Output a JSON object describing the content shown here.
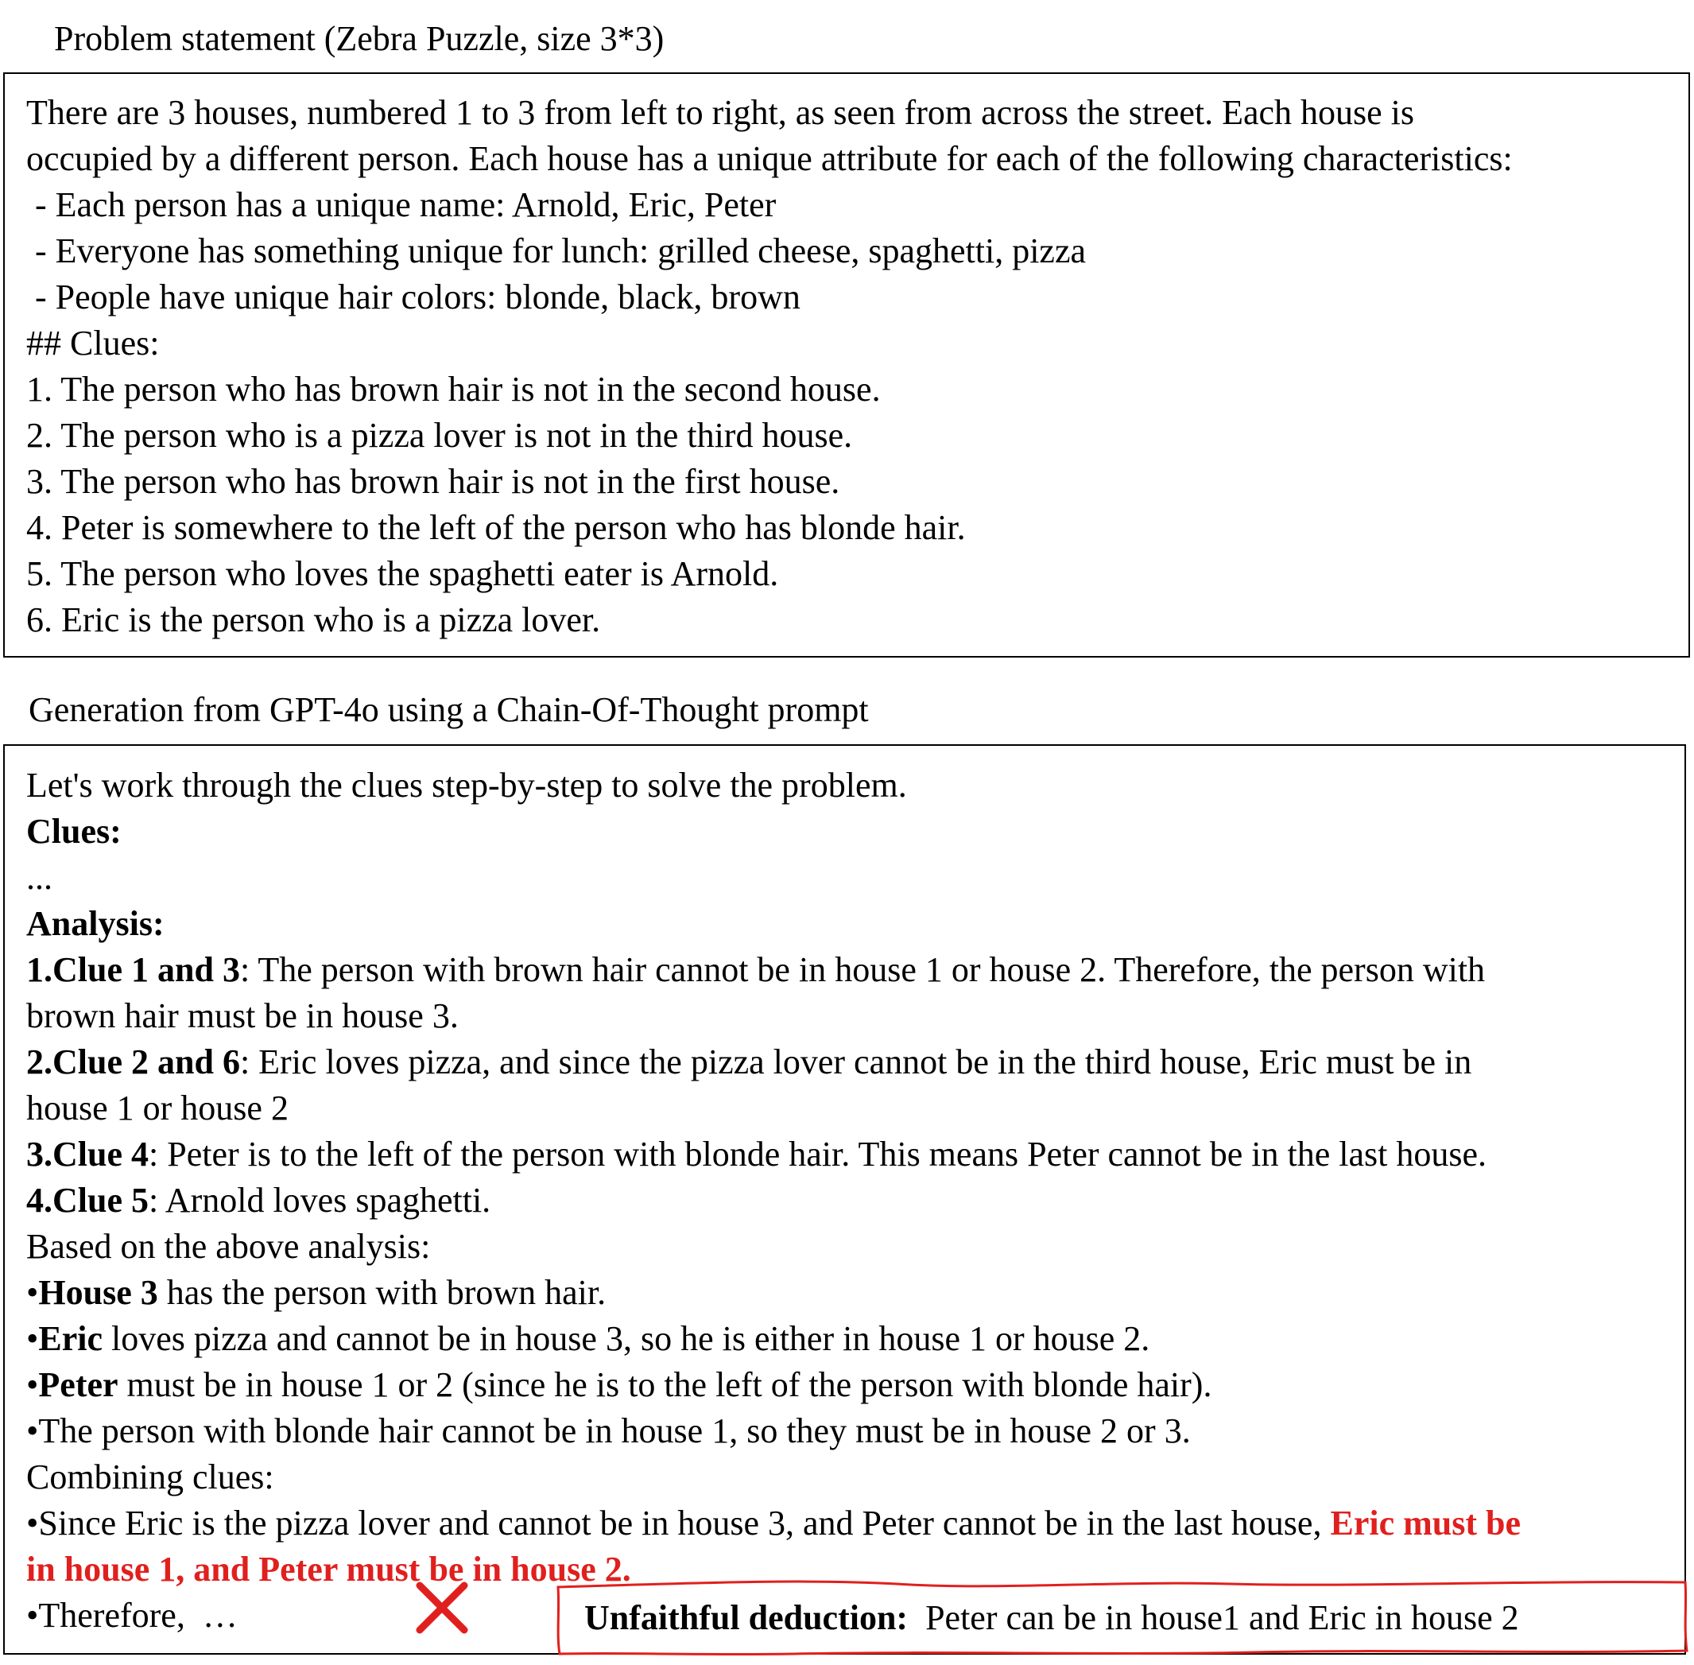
{
  "problem": {
    "title": "Problem statement (Zebra Puzzle, size 3*3)",
    "lines": [
      "There are 3 houses, numbered 1 to 3 from left to right, as seen from across the street. Each house is",
      "occupied by a different person. Each house has a unique attribute for each of the following characteristics:",
      " - Each person has a unique name: Arnold, Eric, Peter",
      " - Everyone has something unique for lunch: grilled cheese, spaghetti, pizza",
      " - People have unique hair colors: blonde, black, brown",
      "## Clues:",
      "1. The person who has brown hair is not in the second house.",
      "2. The person who is a pizza lover is not in the third house.",
      "3. The person who has brown hair is not in the first house.",
      "4. Peter is somewhere to the left of the person who has blonde hair.",
      "5. The person who loves the spaghetti eater is Arnold.",
      "6. Eric is the person who is a pizza lover."
    ]
  },
  "generation": {
    "title": "Generation from GPT-4o using a Chain-Of-Thought prompt",
    "intro": "Let's work through the clues step-by-step to solve the problem.",
    "clues_heading": "Clues:",
    "ellipsis": "...",
    "analysis_heading": "Analysis:",
    "a1_bold": "1.Clue 1 and 3",
    "a1_text": ": The person with brown hair cannot be in house 1 or house 2. Therefore, the person with",
    "a1_cont": "brown hair must be in house 3.",
    "a2_bold": "2.Clue 2 and 6",
    "a2_text": ": Eric loves pizza, and since the pizza lover cannot be in the third house, Eric must be in",
    "a2_cont": "house 1 or house 2",
    "a3_bold": "3.Clue 4",
    "a3_text": ": Peter is to the left of the person with blonde hair. This means Peter cannot be in the last house.",
    "a4_bold": "4.Clue 5",
    "a4_text": ": Arnold loves spaghetti.",
    "based": "Based on the above analysis:",
    "b1_bullet": "•",
    "b1_bold": "House 3",
    "b1_text": " has the person with brown hair.",
    "b2_bullet": "•",
    "b2_bold": "Eric",
    "b2_text": " loves pizza and cannot be in house 3, so he is either in house 1 or house 2.",
    "b3_bullet": "•",
    "b3_bold": "Peter",
    "b3_text": " must be in house 1 or 2 (since he is to the left of the person with blonde hair).",
    "b4": "•The person with blonde hair cannot be in house 1, so they must be in house 2 or 3.",
    "combining": "Combining clues:",
    "c1_text": "•Since Eric is the pizza lover and cannot be in house 3, and Peter cannot be in the last house, ",
    "c1_red": "Eric must be",
    "c1_red_cont": "in house 1, and Peter must be in house 2",
    "c1_period": ".",
    "therefore": "•Therefore,  …"
  },
  "annotation": {
    "label": "Unfaithful deduction:",
    "text": "Peter can be in house1 and Eric in house 2",
    "accent_color": "#e0201e"
  }
}
